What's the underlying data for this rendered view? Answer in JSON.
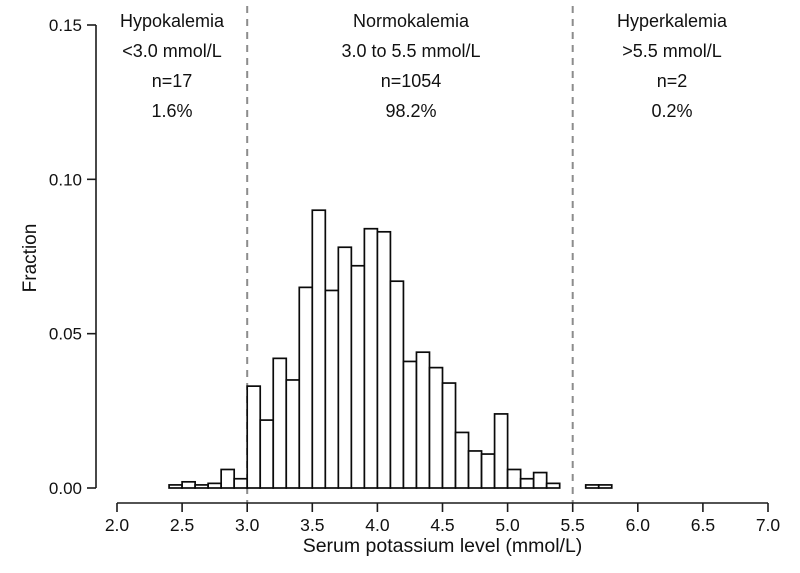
{
  "chart_data": {
    "type": "bar",
    "variant": "histogram",
    "title": "",
    "xlabel": "Serum potassium level (mmol/L)",
    "ylabel": "Fraction",
    "xlim": [
      2.0,
      7.0
    ],
    "ylim": [
      0,
      0.15
    ],
    "x_ticks": [
      2.0,
      2.5,
      3.0,
      3.5,
      4.0,
      4.5,
      5.0,
      5.5,
      6.0,
      6.5,
      7.0
    ],
    "x_tick_labels": [
      "2.0",
      "2.5",
      "3.0",
      "3.5",
      "4.0",
      "4.5",
      "5.0",
      "5.5",
      "6.0",
      "6.5",
      "7.0"
    ],
    "y_ticks": [
      0.0,
      0.05,
      0.1,
      0.15
    ],
    "y_tick_labels": [
      "0.00",
      "0.05",
      "0.10",
      "0.15"
    ],
    "grid": false,
    "legend": "none",
    "bin_width": 0.1,
    "bin_starts": [
      2.4,
      2.5,
      2.6,
      2.7,
      2.8,
      2.9,
      3.0,
      3.1,
      3.2,
      3.3,
      3.4,
      3.5,
      3.6,
      3.7,
      3.8,
      3.9,
      4.0,
      4.1,
      4.2,
      4.3,
      4.4,
      4.5,
      4.6,
      4.7,
      4.8,
      4.9,
      5.0,
      5.1,
      5.2,
      5.3,
      5.4,
      5.5,
      5.6,
      5.7
    ],
    "fractions": [
      0.001,
      0.002,
      0.001,
      0.0015,
      0.006,
      0.003,
      0.033,
      0.022,
      0.042,
      0.035,
      0.065,
      0.09,
      0.064,
      0.078,
      0.072,
      0.084,
      0.083,
      0.067,
      0.041,
      0.044,
      0.039,
      0.034,
      0.018,
      0.012,
      0.011,
      0.024,
      0.006,
      0.003,
      0.005,
      0.0015,
      0,
      0,
      0.001,
      0.001
    ],
    "reference_lines": [
      3.0,
      5.5
    ],
    "regions": [
      {
        "name": "Hypokalemia",
        "range": "<3.0 mmol/L",
        "count": "n=17",
        "percent": "1.6%"
      },
      {
        "name": "Normokalemia",
        "range": "3.0 to 5.5 mmol/L",
        "count": "n=1054",
        "percent": "98.2%"
      },
      {
        "name": "Hyperkalemia",
        "range": ">5.5 mmol/L",
        "count": "n=2",
        "percent": "0.2%"
      }
    ]
  },
  "colors": {
    "background": "#ffffff",
    "bar_fill": "#ffffff",
    "bar_stroke": "#0a0a0a",
    "axis": "#1a1a1a",
    "text": "#111111",
    "reference_line": "#8c8c8c"
  }
}
